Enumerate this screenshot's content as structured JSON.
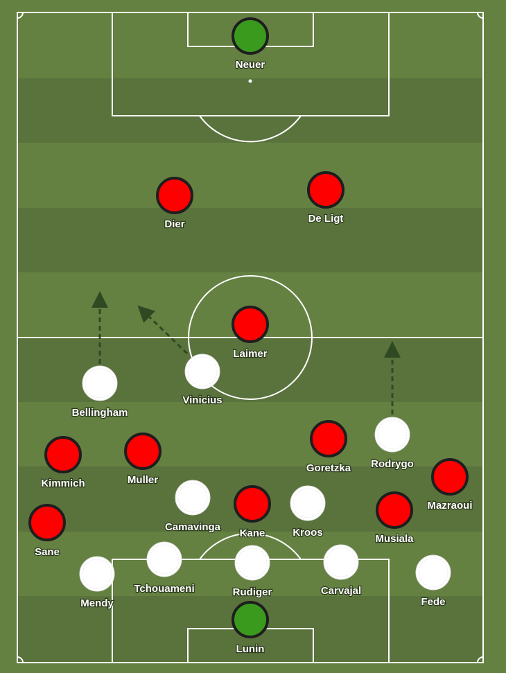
{
  "colors": {
    "pitch_light": "#648142",
    "pitch_dark": "#5a733d",
    "lines": "#ffffff",
    "team_red": "#ff0000",
    "team_white": "#ffffff",
    "goalkeeper": "#3a9a1e",
    "arrow": "#2f4a22"
  },
  "players": [
    {
      "name": "Neuer",
      "team": "goalkeeper"
    },
    {
      "name": "Dier",
      "team": "red"
    },
    {
      "name": "De Ligt",
      "team": "red"
    },
    {
      "name": "Laimer",
      "team": "red"
    },
    {
      "name": "Bellingham",
      "team": "white"
    },
    {
      "name": "Vinicius",
      "team": "white"
    },
    {
      "name": "Rodrygo",
      "team": "white"
    },
    {
      "name": "Goretzka",
      "team": "red"
    },
    {
      "name": "Kimmich",
      "team": "red"
    },
    {
      "name": "Muller",
      "team": "red"
    },
    {
      "name": "Mazraoui",
      "team": "red"
    },
    {
      "name": "Camavinga",
      "team": "white"
    },
    {
      "name": "Kane",
      "team": "red"
    },
    {
      "name": "Kroos",
      "team": "white"
    },
    {
      "name": "Musiala",
      "team": "red"
    },
    {
      "name": "Sane",
      "team": "red"
    },
    {
      "name": "Mendy",
      "team": "white"
    },
    {
      "name": "Tchouameni",
      "team": "white"
    },
    {
      "name": "Rudiger",
      "team": "white"
    },
    {
      "name": "Carvajal",
      "team": "white"
    },
    {
      "name": "Fede",
      "team": "white"
    },
    {
      "name": "Lunin",
      "team": "goalkeeper"
    }
  ],
  "arrows": [
    {
      "from": "Bellingham",
      "type": "run"
    },
    {
      "from": "Vinicius",
      "type": "run"
    },
    {
      "from": "Rodrygo",
      "type": "run"
    }
  ]
}
